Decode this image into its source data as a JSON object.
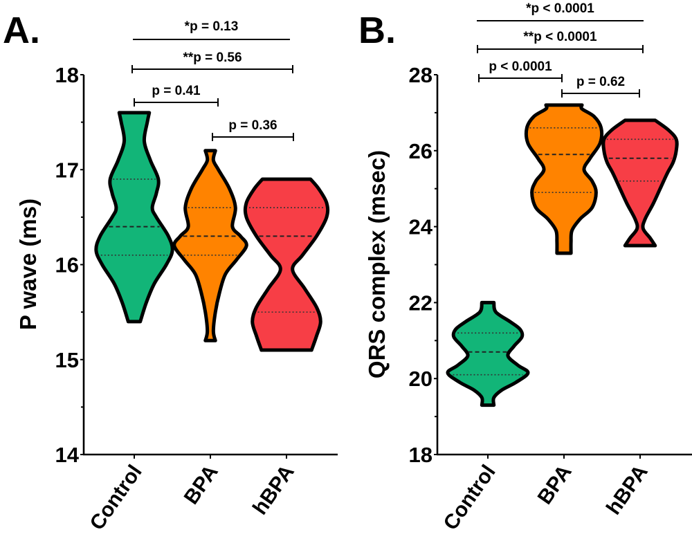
{
  "chart_data": [
    {
      "type": "violin",
      "panel_label": "A.",
      "title": "",
      "xlabel": "",
      "ylabel": "P wave (ms)",
      "ylim": [
        14,
        18
      ],
      "yticks": [
        14,
        15,
        16,
        17,
        18
      ],
      "yminor": [
        14.5,
        15.5,
        16.5,
        17.5
      ],
      "categories": [
        "Control",
        "BPA",
        "hBPA"
      ],
      "colors": [
        "#12b578",
        "#ff8300",
        "#f73e46"
      ],
      "series": [
        {
          "name": "Control",
          "min": 15.4,
          "max": 17.6,
          "q1": 16.1,
          "median": 16.4,
          "q3": 16.9,
          "density": [
            [
              15.4,
              0.06
            ],
            [
              15.6,
              0.12
            ],
            [
              15.8,
              0.2
            ],
            [
              16.0,
              0.32
            ],
            [
              16.15,
              0.38
            ],
            [
              16.3,
              0.34
            ],
            [
              16.5,
              0.22
            ],
            [
              16.6,
              0.18
            ],
            [
              16.75,
              0.22
            ],
            [
              16.9,
              0.24
            ],
            [
              17.1,
              0.16
            ],
            [
              17.3,
              0.1
            ],
            [
              17.5,
              0.13
            ],
            [
              17.6,
              0.15
            ]
          ]
        },
        {
          "name": "BPA",
          "min": 15.2,
          "max": 17.2,
          "q1": 16.1,
          "median": 16.3,
          "q3": 16.6,
          "density": [
            [
              15.2,
              0.05
            ],
            [
              15.3,
              0.03
            ],
            [
              15.5,
              0.05
            ],
            [
              15.7,
              0.09
            ],
            [
              15.9,
              0.15
            ],
            [
              16.05,
              0.26
            ],
            [
              16.2,
              0.36
            ],
            [
              16.3,
              0.3
            ],
            [
              16.4,
              0.22
            ],
            [
              16.6,
              0.25
            ],
            [
              16.8,
              0.19
            ],
            [
              17.0,
              0.08
            ],
            [
              17.1,
              0.03
            ],
            [
              17.2,
              0.05
            ]
          ]
        },
        {
          "name": "hBPA",
          "min": 15.1,
          "max": 16.9,
          "q1": 15.5,
          "median": 16.3,
          "q3": 16.6,
          "density": [
            [
              15.1,
              0.25
            ],
            [
              15.25,
              0.3
            ],
            [
              15.4,
              0.34
            ],
            [
              15.55,
              0.3
            ],
            [
              15.75,
              0.18
            ],
            [
              15.95,
              0.06
            ],
            [
              16.1,
              0.16
            ],
            [
              16.3,
              0.3
            ],
            [
              16.5,
              0.4
            ],
            [
              16.65,
              0.4
            ],
            [
              16.8,
              0.32
            ],
            [
              16.9,
              0.24
            ]
          ]
        }
      ],
      "comparisons": [
        {
          "label": "p = 0.41",
          "groups": [
            "Control",
            "BPA"
          ],
          "capped": true
        },
        {
          "label": "p = 0.36",
          "groups": [
            "BPA",
            "hBPA"
          ],
          "capped": true
        },
        {
          "label": "**p = 0.56",
          "groups": [
            "Control",
            "hBPA"
          ],
          "capped": true
        },
        {
          "label": "*p = 0.13",
          "groups": [
            "Control",
            "hBPA"
          ],
          "capped": false
        }
      ]
    },
    {
      "type": "violin",
      "panel_label": "B.",
      "title": "",
      "xlabel": "",
      "ylabel": "QRS complex (msec)",
      "ylim": [
        18,
        28
      ],
      "yticks": [
        18,
        20,
        22,
        24,
        26,
        28
      ],
      "yminor": [
        19,
        21,
        23,
        25,
        27
      ],
      "categories": [
        "Control",
        "BPA",
        "hBPA"
      ],
      "colors": [
        "#12b578",
        "#ff8300",
        "#f73e46"
      ],
      "series": [
        {
          "name": "Control",
          "min": 19.3,
          "max": 22.0,
          "q1": 20.1,
          "median": 20.7,
          "q3": 21.2,
          "density": [
            [
              19.3,
              0.06
            ],
            [
              19.5,
              0.06
            ],
            [
              19.7,
              0.14
            ],
            [
              19.9,
              0.28
            ],
            [
              20.15,
              0.4
            ],
            [
              20.35,
              0.3
            ],
            [
              20.6,
              0.2
            ],
            [
              20.85,
              0.26
            ],
            [
              21.1,
              0.34
            ],
            [
              21.3,
              0.32
            ],
            [
              21.5,
              0.22
            ],
            [
              21.75,
              0.08
            ],
            [
              22.0,
              0.06
            ]
          ]
        },
        {
          "name": "BPA",
          "min": 23.3,
          "max": 27.2,
          "q1": 24.9,
          "median": 25.9,
          "q3": 26.6,
          "density": [
            [
              23.3,
              0.07
            ],
            [
              23.6,
              0.07
            ],
            [
              23.9,
              0.08
            ],
            [
              24.2,
              0.16
            ],
            [
              24.5,
              0.28
            ],
            [
              24.9,
              0.32
            ],
            [
              25.2,
              0.28
            ],
            [
              25.5,
              0.2
            ],
            [
              25.8,
              0.26
            ],
            [
              26.2,
              0.36
            ],
            [
              26.6,
              0.37
            ],
            [
              26.9,
              0.3
            ],
            [
              27.1,
              0.18
            ],
            [
              27.2,
              0.18
            ]
          ]
        },
        {
          "name": "hBPA",
          "min": 23.5,
          "max": 26.8,
          "q1": 25.2,
          "median": 25.8,
          "q3": 26.3,
          "density": [
            [
              23.5,
              0.15
            ],
            [
              23.7,
              0.1
            ],
            [
              23.95,
              0.03
            ],
            [
              24.2,
              0.05
            ],
            [
              24.6,
              0.13
            ],
            [
              25.0,
              0.2
            ],
            [
              25.4,
              0.27
            ],
            [
              25.7,
              0.33
            ],
            [
              26.0,
              0.36
            ],
            [
              26.3,
              0.36
            ],
            [
              26.55,
              0.28
            ],
            [
              26.8,
              0.15
            ]
          ]
        }
      ],
      "comparisons": [
        {
          "label": "p < 0.0001",
          "groups": [
            "Control",
            "BPA"
          ],
          "capped": true
        },
        {
          "label": "p = 0.62",
          "groups": [
            "BPA",
            "hBPA"
          ],
          "capped": true
        },
        {
          "label": "**p < 0.0001",
          "groups": [
            "Control",
            "hBPA"
          ],
          "capped": true
        },
        {
          "label": "*p < 0.0001",
          "groups": [
            "Control",
            "hBPA"
          ],
          "capped": false
        }
      ]
    }
  ]
}
